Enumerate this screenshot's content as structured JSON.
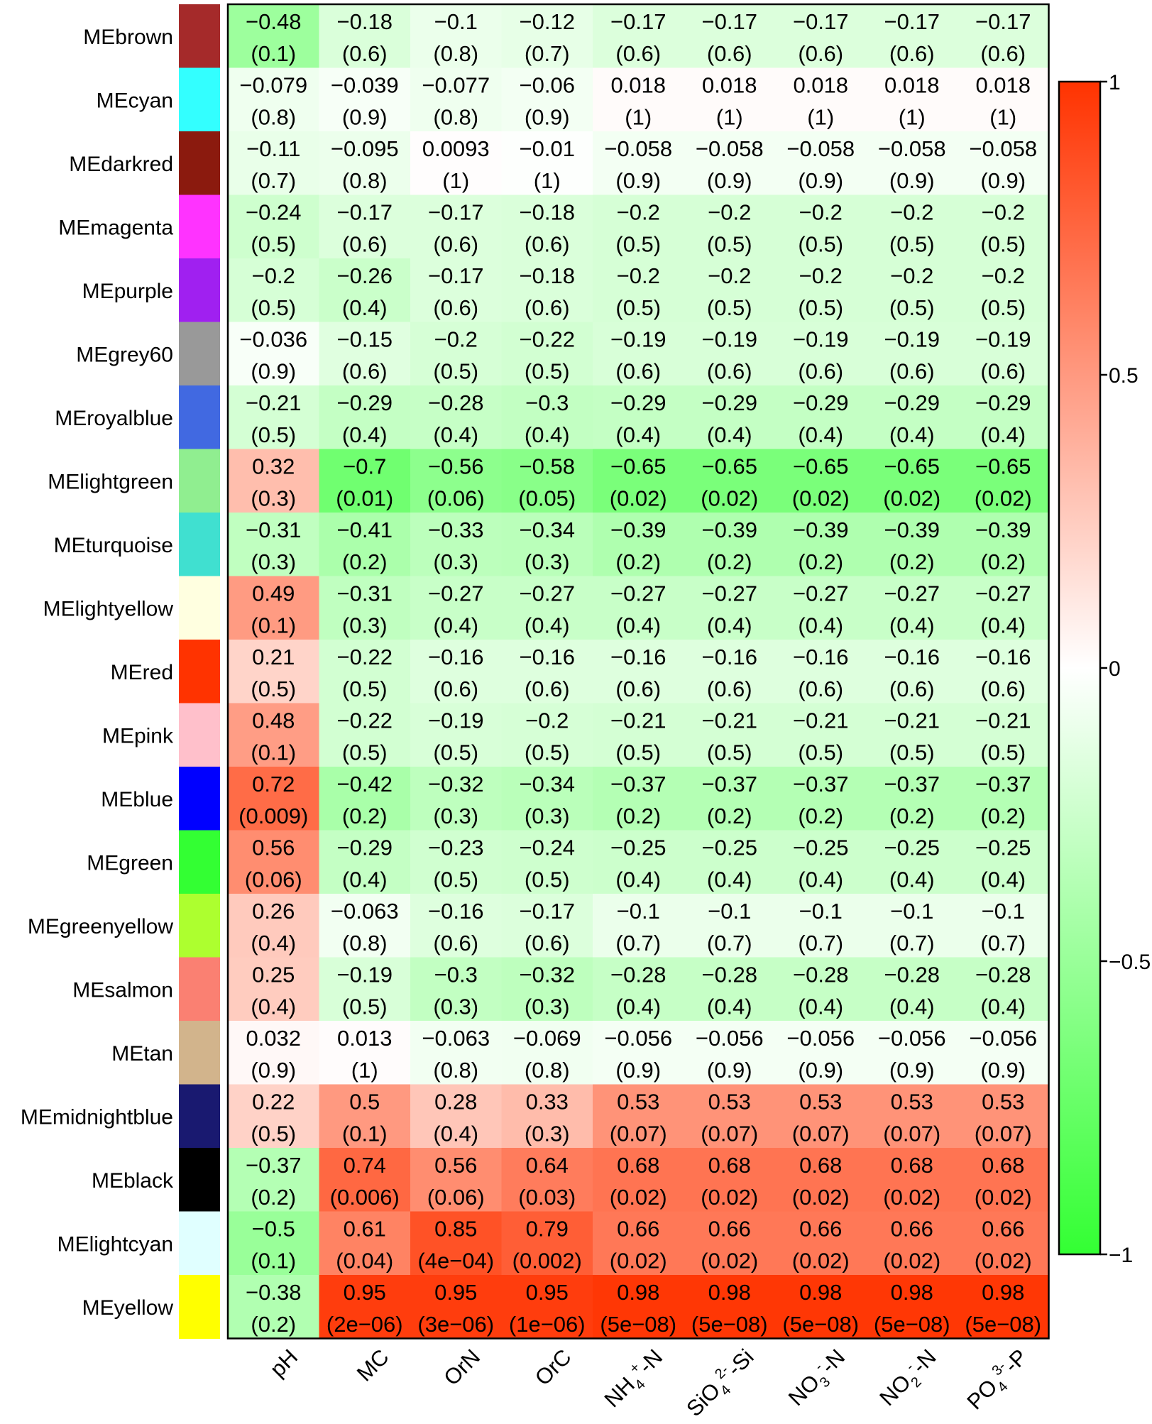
{
  "chart_data": {
    "type": "heatmap",
    "rows": [
      "MEbrown",
      "MEcyan",
      "MEdarkred",
      "MEmagenta",
      "MEpurple",
      "MEgrey60",
      "MEroyalblue",
      "MElightgreen",
      "MEturquoise",
      "MElightyellow",
      "MEred",
      "MEpink",
      "MEblue",
      "MEgreen",
      "MEgreenyellow",
      "MEsalmon",
      "MEtan",
      "MEmidnightblue",
      "MEblack",
      "MElightcyan",
      "MEyellow"
    ],
    "row_colors": [
      "#a52a2a",
      "#33ffff",
      "#8b1a0e",
      "#ff33ff",
      "#a020f0",
      "#999999",
      "#4169e1",
      "#90ee90",
      "#40e0d0",
      "#ffffe0",
      "#ff3300",
      "#ffc0cb",
      "#0000ff",
      "#33ff33",
      "#adff2f",
      "#fa8072",
      "#d2b48c",
      "#191970",
      "#000000",
      "#e0ffff",
      "#ffff00"
    ],
    "columns": [
      {
        "base": "pH",
        "sup": "",
        "sub": "",
        "tail": ""
      },
      {
        "base": "MC",
        "sup": "",
        "sub": "",
        "tail": ""
      },
      {
        "base": "OrN",
        "sup": "",
        "sub": "",
        "tail": ""
      },
      {
        "base": "OrC",
        "sup": "",
        "sub": "",
        "tail": ""
      },
      {
        "base": "NH",
        "sup": "+",
        "sub": "4",
        "tail": "-N"
      },
      {
        "base": "SiO",
        "sup": "2-",
        "sub": "4",
        "tail": "-Si"
      },
      {
        "base": "NO",
        "sup": "-",
        "sub": "3",
        "tail": "-N"
      },
      {
        "base": "NO",
        "sup": "-",
        "sub": "2",
        "tail": "-N"
      },
      {
        "base": "PO",
        "sup": "3-",
        "sub": "4",
        "tail": "-P"
      }
    ],
    "values": [
      [
        "−0.48",
        "−0.18",
        "−0.1",
        "−0.12",
        "−0.17",
        "−0.17",
        "−0.17",
        "−0.17",
        "−0.17"
      ],
      [
        "−0.079",
        "−0.039",
        "−0.077",
        "−0.06",
        "0.018",
        "0.018",
        "0.018",
        "0.018",
        "0.018"
      ],
      [
        "−0.11",
        "−0.095",
        "0.0093",
        "−0.01",
        "−0.058",
        "−0.058",
        "−0.058",
        "−0.058",
        "−0.058"
      ],
      [
        "−0.24",
        "−0.17",
        "−0.17",
        "−0.18",
        "−0.2",
        "−0.2",
        "−0.2",
        "−0.2",
        "−0.2"
      ],
      [
        "−0.2",
        "−0.26",
        "−0.17",
        "−0.18",
        "−0.2",
        "−0.2",
        "−0.2",
        "−0.2",
        "−0.2"
      ],
      [
        "−0.036",
        "−0.15",
        "−0.2",
        "−0.22",
        "−0.19",
        "−0.19",
        "−0.19",
        "−0.19",
        "−0.19"
      ],
      [
        "−0.21",
        "−0.29",
        "−0.28",
        "−0.3",
        "−0.29",
        "−0.29",
        "−0.29",
        "−0.29",
        "−0.29"
      ],
      [
        "0.32",
        "−0.7",
        "−0.56",
        "−0.58",
        "−0.65",
        "−0.65",
        "−0.65",
        "−0.65",
        "−0.65"
      ],
      [
        "−0.31",
        "−0.41",
        "−0.33",
        "−0.34",
        "−0.39",
        "−0.39",
        "−0.39",
        "−0.39",
        "−0.39"
      ],
      [
        "0.49",
        "−0.31",
        "−0.27",
        "−0.27",
        "−0.27",
        "−0.27",
        "−0.27",
        "−0.27",
        "−0.27"
      ],
      [
        "0.21",
        "−0.22",
        "−0.16",
        "−0.16",
        "−0.16",
        "−0.16",
        "−0.16",
        "−0.16",
        "−0.16"
      ],
      [
        "0.48",
        "−0.22",
        "−0.19",
        "−0.2",
        "−0.21",
        "−0.21",
        "−0.21",
        "−0.21",
        "−0.21"
      ],
      [
        "0.72",
        "−0.42",
        "−0.32",
        "−0.34",
        "−0.37",
        "−0.37",
        "−0.37",
        "−0.37",
        "−0.37"
      ],
      [
        "0.56",
        "−0.29",
        "−0.23",
        "−0.24",
        "−0.25",
        "−0.25",
        "−0.25",
        "−0.25",
        "−0.25"
      ],
      [
        "0.26",
        "−0.063",
        "−0.16",
        "−0.17",
        "−0.1",
        "−0.1",
        "−0.1",
        "−0.1",
        "−0.1"
      ],
      [
        "0.25",
        "−0.19",
        "−0.3",
        "−0.32",
        "−0.28",
        "−0.28",
        "−0.28",
        "−0.28",
        "−0.28"
      ],
      [
        "0.032",
        "0.013",
        "−0.063",
        "−0.069",
        "−0.056",
        "−0.056",
        "−0.056",
        "−0.056",
        "−0.056"
      ],
      [
        "0.22",
        "0.5",
        "0.28",
        "0.33",
        "0.53",
        "0.53",
        "0.53",
        "0.53",
        "0.53"
      ],
      [
        "−0.37",
        "0.74",
        "0.56",
        "0.64",
        "0.68",
        "0.68",
        "0.68",
        "0.68",
        "0.68"
      ],
      [
        "−0.5",
        "0.61",
        "0.85",
        "0.79",
        "0.66",
        "0.66",
        "0.66",
        "0.66",
        "0.66"
      ],
      [
        "−0.38",
        "0.95",
        "0.95",
        "0.95",
        "0.98",
        "0.98",
        "0.98",
        "0.98",
        "0.98"
      ]
    ],
    "pvalues": [
      [
        "(0.1)",
        "(0.6)",
        "(0.8)",
        "(0.7)",
        "(0.6)",
        "(0.6)",
        "(0.6)",
        "(0.6)",
        "(0.6)"
      ],
      [
        "(0.8)",
        "(0.9)",
        "(0.8)",
        "(0.9)",
        "(1)",
        "(1)",
        "(1)",
        "(1)",
        "(1)"
      ],
      [
        "(0.7)",
        "(0.8)",
        "(1)",
        "(1)",
        "(0.9)",
        "(0.9)",
        "(0.9)",
        "(0.9)",
        "(0.9)"
      ],
      [
        "(0.5)",
        "(0.6)",
        "(0.6)",
        "(0.6)",
        "(0.5)",
        "(0.5)",
        "(0.5)",
        "(0.5)",
        "(0.5)"
      ],
      [
        "(0.5)",
        "(0.4)",
        "(0.6)",
        "(0.6)",
        "(0.5)",
        "(0.5)",
        "(0.5)",
        "(0.5)",
        "(0.5)"
      ],
      [
        "(0.9)",
        "(0.6)",
        "(0.5)",
        "(0.5)",
        "(0.6)",
        "(0.6)",
        "(0.6)",
        "(0.6)",
        "(0.6)"
      ],
      [
        "(0.5)",
        "(0.4)",
        "(0.4)",
        "(0.4)",
        "(0.4)",
        "(0.4)",
        "(0.4)",
        "(0.4)",
        "(0.4)"
      ],
      [
        "(0.3)",
        "(0.01)",
        "(0.06)",
        "(0.05)",
        "(0.02)",
        "(0.02)",
        "(0.02)",
        "(0.02)",
        "(0.02)"
      ],
      [
        "(0.3)",
        "(0.2)",
        "(0.3)",
        "(0.3)",
        "(0.2)",
        "(0.2)",
        "(0.2)",
        "(0.2)",
        "(0.2)"
      ],
      [
        "(0.1)",
        "(0.3)",
        "(0.4)",
        "(0.4)",
        "(0.4)",
        "(0.4)",
        "(0.4)",
        "(0.4)",
        "(0.4)"
      ],
      [
        "(0.5)",
        "(0.5)",
        "(0.6)",
        "(0.6)",
        "(0.6)",
        "(0.6)",
        "(0.6)",
        "(0.6)",
        "(0.6)"
      ],
      [
        "(0.1)",
        "(0.5)",
        "(0.5)",
        "(0.5)",
        "(0.5)",
        "(0.5)",
        "(0.5)",
        "(0.5)",
        "(0.5)"
      ],
      [
        "(0.009)",
        "(0.2)",
        "(0.3)",
        "(0.3)",
        "(0.2)",
        "(0.2)",
        "(0.2)",
        "(0.2)",
        "(0.2)"
      ],
      [
        "(0.06)",
        "(0.4)",
        "(0.5)",
        "(0.5)",
        "(0.4)",
        "(0.4)",
        "(0.4)",
        "(0.4)",
        "(0.4)"
      ],
      [
        "(0.4)",
        "(0.8)",
        "(0.6)",
        "(0.6)",
        "(0.7)",
        "(0.7)",
        "(0.7)",
        "(0.7)",
        "(0.7)"
      ],
      [
        "(0.4)",
        "(0.5)",
        "(0.3)",
        "(0.3)",
        "(0.4)",
        "(0.4)",
        "(0.4)",
        "(0.4)",
        "(0.4)"
      ],
      [
        "(0.9)",
        "(1)",
        "(0.8)",
        "(0.8)",
        "(0.9)",
        "(0.9)",
        "(0.9)",
        "(0.9)",
        "(0.9)"
      ],
      [
        "(0.5)",
        "(0.1)",
        "(0.4)",
        "(0.3)",
        "(0.07)",
        "(0.07)",
        "(0.07)",
        "(0.07)",
        "(0.07)"
      ],
      [
        "(0.2)",
        "(0.006)",
        "(0.06)",
        "(0.03)",
        "(0.02)",
        "(0.02)",
        "(0.02)",
        "(0.02)",
        "(0.02)"
      ],
      [
        "(0.1)",
        "(0.04)",
        "(4e−04)",
        "(0.002)",
        "(0.02)",
        "(0.02)",
        "(0.02)",
        "(0.02)",
        "(0.02)"
      ],
      [
        "(0.2)",
        "(2e−06)",
        "(3e−06)",
        "(1e−06)",
        "(5e−08)",
        "(5e−08)",
        "(5e−08)",
        "(5e−08)",
        "(5e−08)"
      ]
    ],
    "colorbar": {
      "range": [
        -1,
        1
      ],
      "ticks": [
        1,
        0.5,
        0,
        -0.5,
        -1
      ],
      "tick_labels": [
        "1",
        "0.5",
        "0",
        "−0.5",
        "−1"
      ],
      "colors": {
        "negative": "#33ff33",
        "zero": "#ffffff",
        "positive": "#ff3300"
      }
    },
    "title": "",
    "xlabel": "",
    "ylabel": ""
  }
}
